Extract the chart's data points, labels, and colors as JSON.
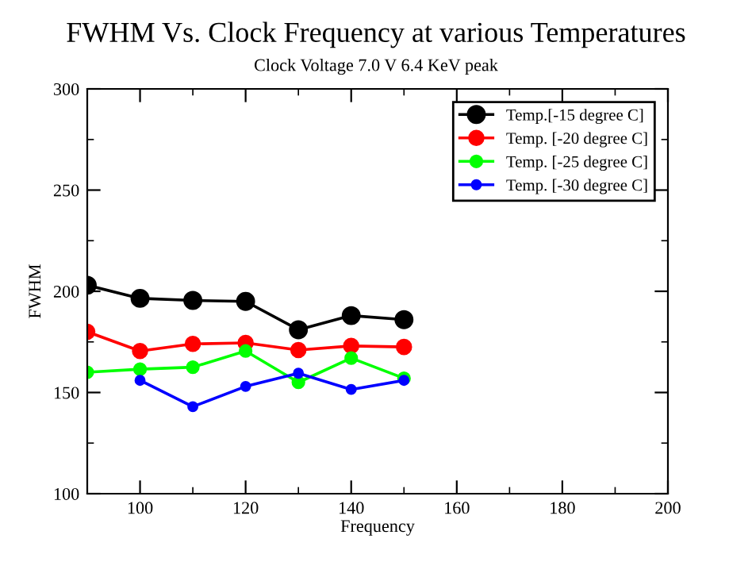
{
  "chart_data": {
    "type": "line",
    "title": "FWHM Vs. Clock Frequency at various Temperatures",
    "subtitle": "Clock Voltage 7.0 V 6.4 KeV peak",
    "xlabel": "Frequency",
    "ylabel": "FWHM",
    "x": [
      90,
      100,
      110,
      120,
      130,
      140,
      150
    ],
    "series": [
      {
        "name": "Temp.[-15 degree C]",
        "color": "#000000",
        "values": [
          203,
          196.5,
          195.5,
          195,
          181,
          188,
          186
        ]
      },
      {
        "name": "Temp. [-20 degree C]",
        "color": "#ff0000",
        "values": [
          180,
          170.5,
          174,
          174.5,
          171,
          173,
          172.5
        ]
      },
      {
        "name": "Temp. [-25 degree C]",
        "color": "#00ff00",
        "values": [
          160,
          161.5,
          162.5,
          170.5,
          155,
          167,
          157
        ]
      },
      {
        "name": "Temp. [-30 degree C]",
        "color": "#0000ff",
        "values": [
          null,
          156,
          143,
          153,
          159.5,
          151.5,
          156
        ]
      }
    ],
    "xlim": [
      90,
      200
    ],
    "ylim": [
      100,
      300
    ],
    "xticks": [
      100,
      120,
      140,
      160,
      180,
      200
    ],
    "yticks": [
      100,
      150,
      200,
      250,
      300
    ],
    "grid": false,
    "legend": "top right",
    "marker": "circle",
    "line_style": "solid"
  }
}
